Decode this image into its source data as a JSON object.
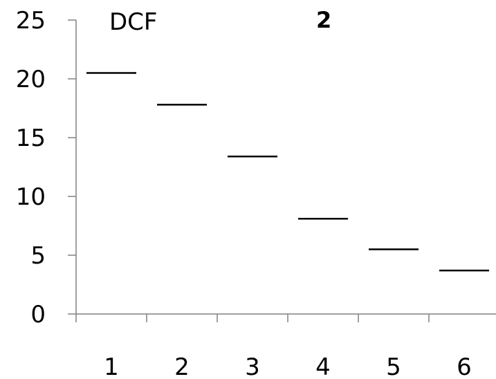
{
  "chart_data": {
    "type": "line",
    "title": "DCF",
    "subtitle": "2",
    "xlabel": "",
    "ylabel": "",
    "categories": [
      "1",
      "2",
      "3",
      "4",
      "5",
      "6"
    ],
    "values": [
      20.5,
      17.8,
      13.4,
      8.1,
      5.5,
      3.7
    ],
    "ylim": [
      0,
      25
    ],
    "yticks": [
      0,
      5,
      10,
      15,
      20,
      25
    ],
    "grid": false,
    "legend": "none",
    "colors": {
      "series": "#000000",
      "axis": "#808080",
      "text": "#000000"
    }
  }
}
